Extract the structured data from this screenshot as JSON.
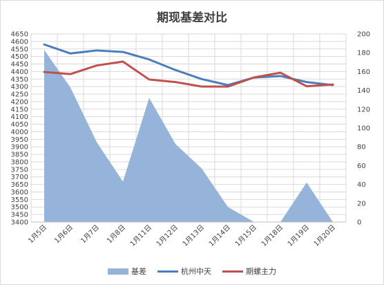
{
  "chart_data": {
    "type": "line",
    "title": "期现基差对比",
    "categories": [
      "1月5日",
      "1月6日",
      "1月7日",
      "1月8日",
      "1月11日",
      "1月12日",
      "1月13日",
      "1月14日",
      "1月15日",
      "1月18日",
      "1月19日",
      "1月20日"
    ],
    "series": [
      {
        "name": "基差",
        "type": "area",
        "axis": "right",
        "color": "#96b3d9",
        "values": [
          183,
          143,
          85,
          43,
          132,
          83,
          57,
          16,
          0,
          0,
          42,
          0
        ]
      },
      {
        "name": "杭州中天",
        "type": "line",
        "axis": "left",
        "color": "#4a7dbe",
        "values": [
          4580,
          4520,
          4540,
          4530,
          4480,
          4410,
          4350,
          4310,
          4360,
          4370,
          4330,
          4310
        ]
      },
      {
        "name": "期螺主力",
        "type": "line",
        "axis": "left",
        "color": "#c0504d",
        "values": [
          4397,
          4383,
          4440,
          4466,
          4347,
          4330,
          4300,
          4300,
          4361,
          4392,
          4302,
          4314
        ]
      }
    ],
    "y_left": {
      "min": 3400,
      "max": 4650,
      "step": 50
    },
    "y_right": {
      "min": 0,
      "max": 200,
      "step": 20
    },
    "grid": true,
    "legend_position": "bottom"
  }
}
